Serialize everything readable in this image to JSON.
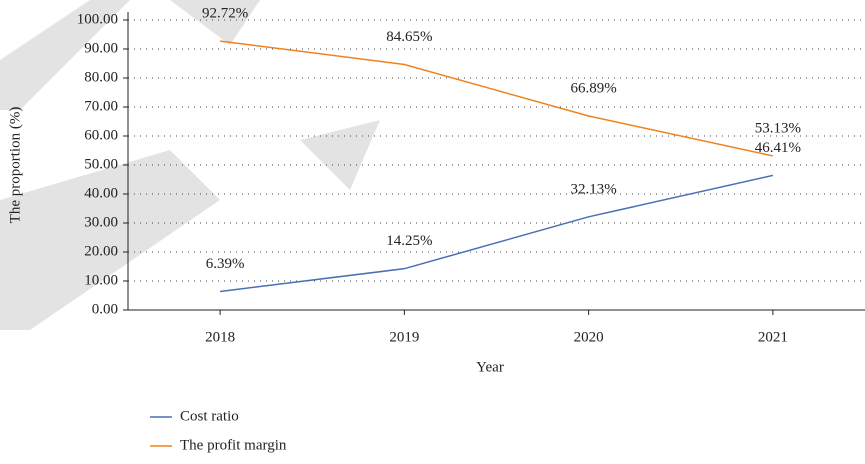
{
  "chart_data": {
    "type": "line",
    "x_label": "Year",
    "y_label": "The proportion (%)",
    "categories": [
      "2018",
      "2019",
      "2020",
      "2021"
    ],
    "series": [
      {
        "name": "Cost ratio",
        "color": "#4a6fb5",
        "values": [
          6.39,
          14.25,
          32.13,
          46.41
        ],
        "value_labels": [
          "6.39%",
          "14.25%",
          "32.13%",
          "46.41%"
        ]
      },
      {
        "name": "The profit margin",
        "color": "#f0821e",
        "values": [
          92.72,
          84.65,
          66.89,
          53.13
        ],
        "value_labels": [
          "92.72%",
          "84.65%",
          "66.89%",
          "53.13%"
        ]
      }
    ],
    "ylim": [
      0,
      100
    ],
    "yticks": [
      {
        "value": 0,
        "label": "0.00"
      },
      {
        "value": 10,
        "label": "10.00"
      },
      {
        "value": 20,
        "label": "20.00"
      },
      {
        "value": 30,
        "label": "30.00"
      },
      {
        "value": 40,
        "label": "40.00"
      },
      {
        "value": 50,
        "label": "50.00"
      },
      {
        "value": 60,
        "label": "60.00"
      },
      {
        "value": 70,
        "label": "70.00"
      },
      {
        "value": 80,
        "label": "80.00"
      },
      {
        "value": 90,
        "label": "90.00"
      },
      {
        "value": 100,
        "label": "100.00"
      }
    ],
    "grid": true,
    "legend": "bottom"
  }
}
